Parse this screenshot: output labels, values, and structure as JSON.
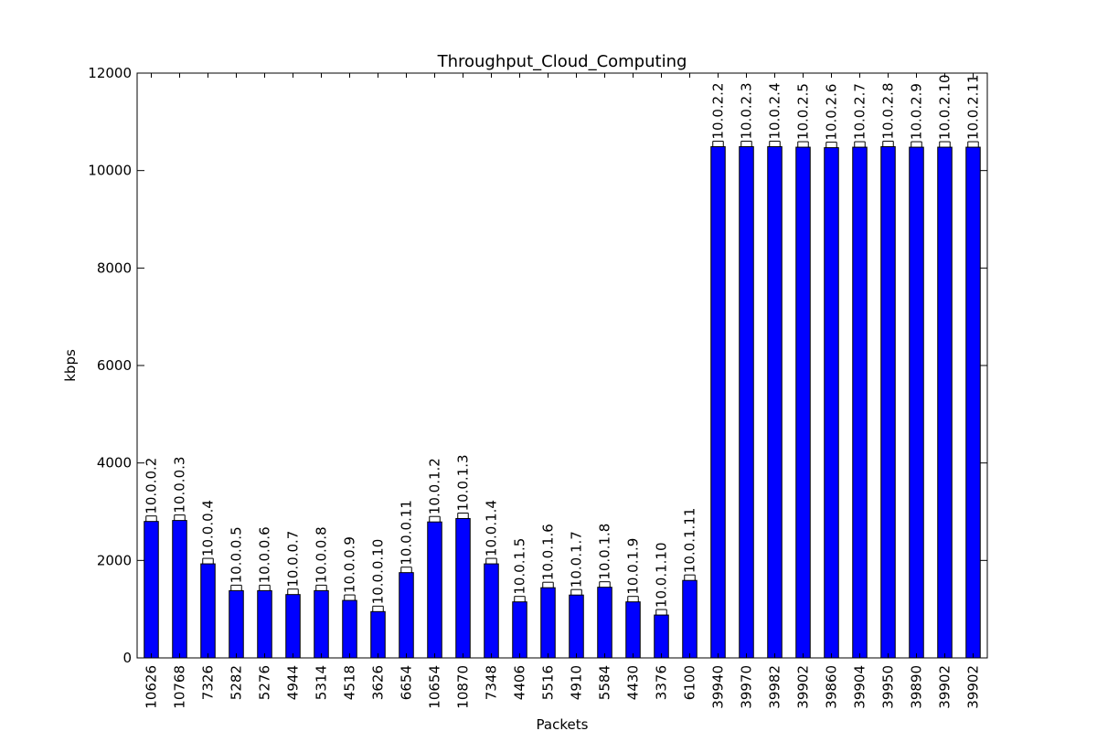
{
  "chart_data": {
    "type": "bar",
    "title": "Throughput_Cloud_Computing",
    "xlabel": "Packets",
    "ylabel": "kbps",
    "ylim": [
      0,
      12000
    ],
    "yticks": [
      0,
      2000,
      4000,
      6000,
      8000,
      10000,
      12000
    ],
    "grid": false,
    "legend": "none",
    "bar_color": "#0000ff",
    "categories": [
      "10626",
      "10768",
      "7326",
      "5282",
      "5276",
      "4944",
      "5314",
      "4518",
      "3626",
      "6654",
      "10654",
      "10870",
      "7348",
      "4406",
      "5516",
      "4910",
      "5584",
      "4430",
      "3376",
      "6100",
      "39940",
      "39970",
      "39982",
      "39902",
      "39860",
      "39904",
      "39950",
      "39890",
      "39902",
      "39902"
    ],
    "bar_labels": [
      "10.0.0.2",
      "10.0.0.3",
      "10.0.0.4",
      "10.0.0.5",
      "10.0.0.6",
      "10.0.0.7",
      "10.0.0.8",
      "10.0.0.9",
      "10.0.0.10",
      "10.0.0.11",
      "10.0.1.2",
      "10.0.1.3",
      "10.0.1.4",
      "10.0.1.5",
      "10.0.1.6",
      "10.0.1.7",
      "10.0.1.8",
      "10.0.1.9",
      "10.0.1.10",
      "10.0.1.11",
      "10.0.2.2",
      "10.0.2.3",
      "10.0.2.4",
      "10.0.2.5",
      "10.0.2.6",
      "10.0.2.7",
      "10.0.2.8",
      "10.0.2.9",
      "10.0.2.10",
      "10.0.2.11"
    ],
    "values": [
      2800,
      2820,
      1930,
      1380,
      1380,
      1300,
      1380,
      1180,
      950,
      1750,
      2790,
      2860,
      1930,
      1150,
      1440,
      1290,
      1450,
      1150,
      880,
      1590,
      10490,
      10490,
      10490,
      10480,
      10470,
      10480,
      10490,
      10480,
      10480,
      10480
    ]
  }
}
